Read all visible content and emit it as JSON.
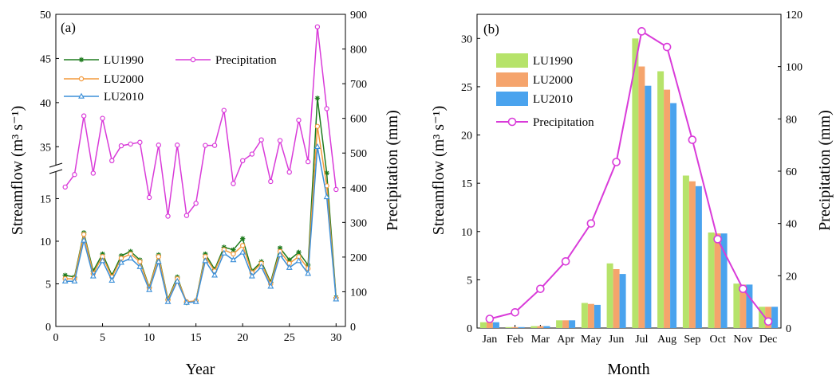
{
  "chart_data": [
    {
      "panel_label": "(a)",
      "type": "line",
      "xlabel": "Year",
      "ylabel_left": "Streamflow (m³ s⁻¹)",
      "ylabel_right": "Precipitation (mm)",
      "x": [
        1,
        2,
        3,
        4,
        5,
        6,
        7,
        8,
        9,
        10,
        11,
        12,
        13,
        14,
        15,
        16,
        17,
        18,
        19,
        20,
        21,
        22,
        23,
        24,
        25,
        26,
        27,
        28,
        29,
        30
      ],
      "x_ticks": [
        "0",
        "5",
        "10",
        "15",
        "20",
        "25",
        "30"
      ],
      "xlim": [
        0,
        31
      ],
      "left_axis": {
        "broken": true,
        "lower_ticks": [
          "0",
          "5",
          "10",
          "15"
        ],
        "upper_ticks": [
          "35",
          "40",
          "45",
          "50"
        ],
        "lower_range": [
          0,
          18.5
        ],
        "upper_range": [
          32.5,
          50
        ]
      },
      "right_ticks": [
        "0",
        "100",
        "200",
        "300",
        "400",
        "500",
        "600",
        "700",
        "800",
        "900"
      ],
      "ylim_right": [
        0,
        900
      ],
      "legend_position": "top-left",
      "series": [
        {
          "name": "LU1990",
          "axis": "left",
          "color": "#1e7b1e",
          "marker": "star",
          "values": [
            6.0,
            5.8,
            11.0,
            6.5,
            8.5,
            6.0,
            8.3,
            8.8,
            7.8,
            4.6,
            8.4,
            3.2,
            5.8,
            2.8,
            3.0,
            8.5,
            6.7,
            9.3,
            9.0,
            10.3,
            6.5,
            7.6,
            5.2,
            9.2,
            7.8,
            8.7,
            7.2,
            40.5,
            18.0,
            3.4
          ]
        },
        {
          "name": "LU2000",
          "axis": "left",
          "color": "#f39a3c",
          "marker": "circle",
          "values": [
            5.6,
            5.6,
            10.8,
            6.2,
            8.2,
            5.8,
            8.0,
            8.5,
            7.6,
            4.5,
            8.2,
            3.1,
            5.6,
            2.9,
            3.0,
            8.2,
            6.5,
            9.0,
            8.5,
            9.5,
            6.3,
            7.4,
            5.0,
            8.8,
            7.4,
            8.2,
            6.8,
            37.3,
            16.5,
            3.3
          ]
        },
        {
          "name": "LU2010",
          "axis": "left",
          "color": "#3b8fd8",
          "marker": "triangle",
          "values": [
            5.3,
            5.3,
            10.1,
            5.9,
            7.7,
            5.4,
            7.5,
            8.0,
            7.0,
            4.3,
            7.6,
            2.9,
            5.3,
            2.8,
            2.9,
            7.7,
            6.0,
            8.6,
            7.8,
            8.7,
            5.9,
            7.0,
            4.7,
            8.4,
            6.9,
            7.7,
            6.2,
            35.0,
            15.2,
            3.2
          ]
        },
        {
          "name": "Precipitation",
          "axis": "right",
          "color": "#d93bd9",
          "marker": "circle",
          "values": [
            402,
            438,
            607,
            442,
            600,
            478,
            521,
            526,
            531,
            372,
            523,
            318,
            523,
            320,
            355,
            522,
            522,
            623,
            412,
            478,
            497,
            538,
            418,
            536,
            445,
            595,
            475,
            864,
            628,
            395
          ]
        }
      ]
    },
    {
      "panel_label": "(b)",
      "type": "bar",
      "xlabel": "Month",
      "ylabel_left": "Streamflow (m³ s⁻¹)",
      "ylabel_right": "Precipitation (mm)",
      "categories": [
        "Jan",
        "Feb",
        "Mar",
        "Apr",
        "May",
        "Jun",
        "Jul",
        "Aug",
        "Sep",
        "Oct",
        "Nov",
        "Dec"
      ],
      "ylim_left": [
        0,
        32.5
      ],
      "left_ticks": [
        "0",
        "5",
        "10",
        "15",
        "20",
        "25",
        "30"
      ],
      "ylim_right": [
        0,
        120
      ],
      "right_ticks": [
        "0",
        "20",
        "40",
        "60",
        "80",
        "100",
        "120"
      ],
      "legend_position": "top-left",
      "series": [
        {
          "name": "LU1990",
          "axis": "left",
          "kind": "bar",
          "color": "#b6e36a",
          "values": [
            0.6,
            0.1,
            0.2,
            0.8,
            2.6,
            6.7,
            30.0,
            26.6,
            15.8,
            9.9,
            4.6,
            2.2
          ]
        },
        {
          "name": "LU2000",
          "axis": "left",
          "kind": "bar",
          "color": "#f5a46c",
          "values": [
            0.6,
            0.1,
            0.2,
            0.8,
            2.5,
            6.1,
            27.1,
            24.7,
            15.2,
            9.8,
            4.5,
            2.2
          ]
        },
        {
          "name": "LU2010",
          "axis": "left",
          "kind": "bar",
          "color": "#4aa3ee",
          "values": [
            0.6,
            0.1,
            0.2,
            0.8,
            2.4,
            5.6,
            25.1,
            23.3,
            14.7,
            9.8,
            4.5,
            2.2
          ]
        },
        {
          "name": "Precipitation",
          "axis": "right",
          "kind": "line",
          "color": "#d93bd9",
          "values": [
            3.5,
            6,
            15,
            25.5,
            40,
            63.5,
            113.5,
            107.5,
            72,
            34,
            15,
            2.5
          ]
        }
      ]
    }
  ]
}
